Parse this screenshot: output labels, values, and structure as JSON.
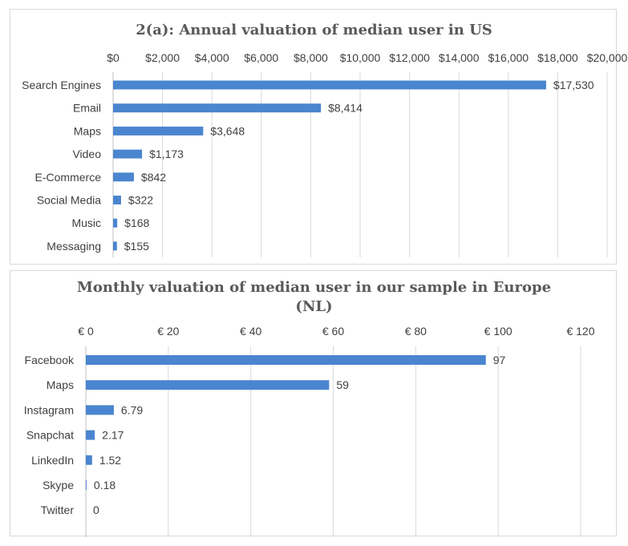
{
  "chart_data": [
    {
      "type": "bar",
      "orientation": "horizontal",
      "title": "2(a): Annual valuation of median user in US",
      "categories": [
        "Search Engines",
        "Email",
        "Maps",
        "Video",
        "E-Commerce",
        "Social Media",
        "Music",
        "Messaging"
      ],
      "values": [
        17530,
        8414,
        3648,
        1173,
        842,
        322,
        168,
        155
      ],
      "data_labels": [
        "$17,530",
        "$8,414",
        "$3,648",
        "$1,173",
        "$842",
        "$322",
        "$168",
        "$155"
      ],
      "xlim": [
        0,
        20000
      ],
      "xticks": [
        0,
        2000,
        4000,
        6000,
        8000,
        10000,
        12000,
        14000,
        16000,
        18000,
        20000
      ],
      "xtick_labels": [
        "$0",
        "$2,000",
        "$4,000",
        "$6,000",
        "$8,000",
        "$10,000",
        "$12,000",
        "$14,000",
        "$16,000",
        "$18,000",
        "$20,000"
      ],
      "axis_position": "top",
      "grid": true,
      "bar_color": "#4a85cf"
    },
    {
      "type": "bar",
      "orientation": "horizontal",
      "title": "Monthly valuation of median user in our sample in Europe (NL)",
      "title_lines": [
        "Monthly valuation of median user in our sample in Europe",
        "(NL)"
      ],
      "categories": [
        "Facebook",
        "Maps",
        "Instagram",
        "Snapchat",
        "LinkedIn",
        "Skype",
        "Twitter"
      ],
      "values": [
        97,
        59,
        6.79,
        2.17,
        1.52,
        0.18,
        0
      ],
      "data_labels": [
        "97",
        "59",
        "6.79",
        "2.17",
        "1.52",
        "0.18",
        "0"
      ],
      "xlim": [
        0,
        120
      ],
      "xticks": [
        0,
        20,
        40,
        60,
        80,
        100,
        120
      ],
      "xtick_labels": [
        "€ 0",
        "€ 20",
        "€ 40",
        "€ 60",
        "€ 80",
        "€ 100",
        "€ 120"
      ],
      "axis_position": "top",
      "grid": true,
      "bar_color": "#4a85cf"
    }
  ]
}
